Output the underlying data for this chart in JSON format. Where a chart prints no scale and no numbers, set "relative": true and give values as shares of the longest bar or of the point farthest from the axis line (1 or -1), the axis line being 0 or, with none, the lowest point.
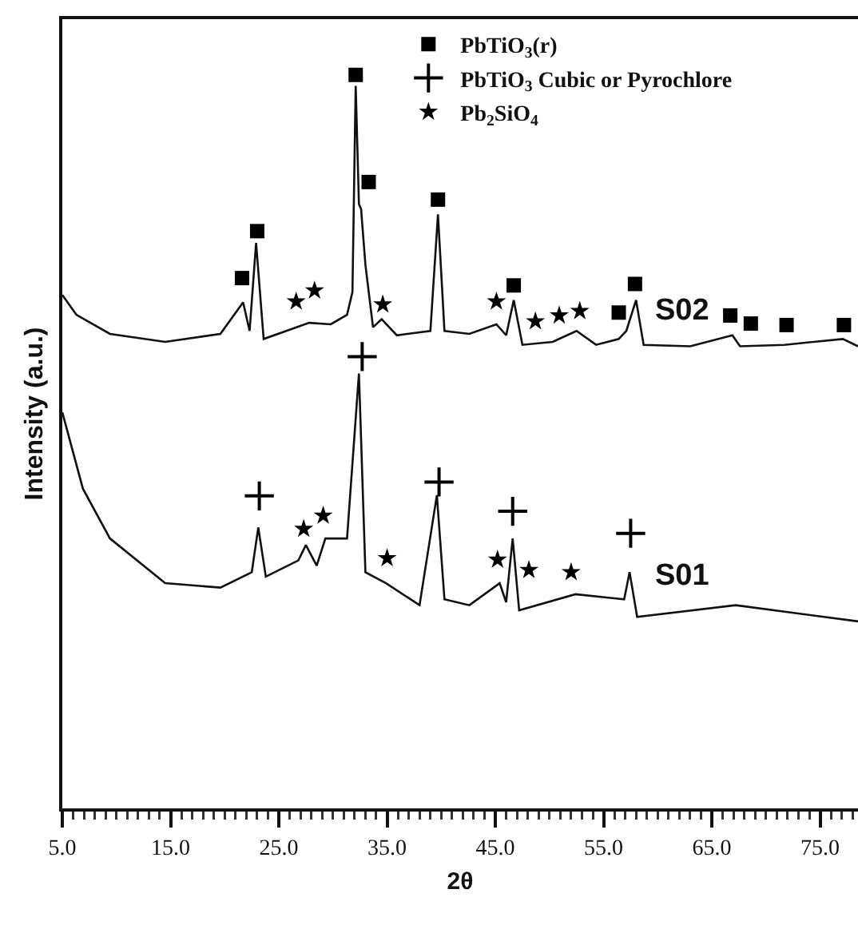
{
  "chart_data": {
    "type": "line",
    "relative": true,
    "xlabel": "2θ",
    "ylabel": "Intensity (a.u.)",
    "xlim": [
      5,
      78.5
    ],
    "xticks": [
      {
        "value": 5,
        "label": "5.0"
      },
      {
        "value": 15,
        "label": "15.0"
      },
      {
        "value": 25,
        "label": "25.0"
      },
      {
        "value": 35,
        "label": "35.0"
      },
      {
        "value": 45,
        "label": "45.0"
      },
      {
        "value": 55,
        "label": "55.0"
      },
      {
        "value": 65,
        "label": "65.0"
      },
      {
        "value": 75,
        "label": "75.0"
      }
    ],
    "grid": false,
    "legend": "top",
    "tick_labels": "x",
    "marker": "none",
    "line_style": "solid",
    "series": [
      {
        "name": "S02",
        "color": "#111111",
        "x": [
          5.0,
          6.3,
          9.4,
          14.5,
          19.6,
          21.7,
          22.3,
          22.9,
          23.6,
          25.7,
          27.8,
          29.8,
          31.3,
          31.8,
          32.1,
          32.4,
          32.6,
          33.0,
          33.7,
          34.5,
          35.9,
          39.0,
          39.7,
          40.3,
          42.6,
          45.1,
          46.0,
          46.7,
          47.5,
          50.3,
          52.5,
          54.3,
          56.4,
          57.1,
          58.0,
          58.7,
          63.0,
          66.9,
          67.6,
          71.7,
          77.1,
          78.5
        ],
        "values": [
          0.7,
          0.673,
          0.647,
          0.636,
          0.647,
          0.69,
          0.651,
          0.771,
          0.64,
          0.651,
          0.662,
          0.66,
          0.673,
          0.704,
          0.985,
          0.824,
          0.817,
          0.741,
          0.656,
          0.667,
          0.645,
          0.651,
          0.81,
          0.651,
          0.647,
          0.66,
          0.645,
          0.693,
          0.632,
          0.636,
          0.651,
          0.632,
          0.64,
          0.651,
          0.693,
          0.632,
          0.63,
          0.645,
          0.63,
          0.632,
          0.64,
          0.63
        ]
      },
      {
        "name": "S01",
        "color": "#111111",
        "x": [
          5.0,
          6.9,
          9.4,
          14.5,
          19.6,
          22.5,
          23.1,
          23.8,
          26.8,
          27.5,
          28.5,
          29.3,
          31.3,
          32.4,
          33.0,
          34.9,
          38.0,
          39.6,
          40.3,
          42.6,
          45.4,
          46.0,
          46.6,
          47.2,
          52.4,
          56.9,
          57.4,
          58.1,
          67.2,
          78.5
        ],
        "values": [
          0.54,
          0.436,
          0.368,
          0.307,
          0.301,
          0.322,
          0.383,
          0.316,
          0.338,
          0.359,
          0.331,
          0.368,
          0.368,
          0.593,
          0.322,
          0.307,
          0.277,
          0.427,
          0.285,
          0.277,
          0.307,
          0.281,
          0.368,
          0.27,
          0.292,
          0.285,
          0.322,
          0.261,
          0.277,
          0.255
        ]
      },
      {
        "name": "PbTiO$_{3}$(r)",
        "type": "scatter",
        "marker": "square",
        "color": "#000000",
        "x": [
          21.6,
          23.0,
          32.1,
          33.3,
          39.7,
          46.7,
          57.9,
          56.4,
          66.7,
          68.6,
          71.9,
          77.2
        ],
        "values": [
          0.723,
          0.787,
          1.0,
          0.854,
          0.83,
          0.713,
          0.715,
          0.676,
          0.672,
          0.661,
          0.659,
          0.659
        ]
      },
      {
        "name": "PbTiO$_{3}$ Cubic or Pyrochlore",
        "type": "scatter",
        "marker": "cross",
        "color": "#000000",
        "x": [
          23.2,
          32.7,
          39.8,
          46.6,
          57.5
        ],
        "values": [
          0.426,
          0.616,
          0.445,
          0.405,
          0.375
        ]
      },
      {
        "name": "Pb$_{2}$SiO$_{4}$",
        "type": "scatter",
        "marker": "star",
        "color": "#000000",
        "x": [
          26.6,
          28.3,
          34.6,
          45.1,
          48.7,
          50.9,
          52.8,
          27.3,
          29.1,
          35.0,
          45.2,
          48.1,
          52.0
        ],
        "values": [
          0.691,
          0.706,
          0.687,
          0.691,
          0.664,
          0.672,
          0.678,
          0.381,
          0.399,
          0.341,
          0.339,
          0.325,
          0.322
        ]
      }
    ]
  }
}
